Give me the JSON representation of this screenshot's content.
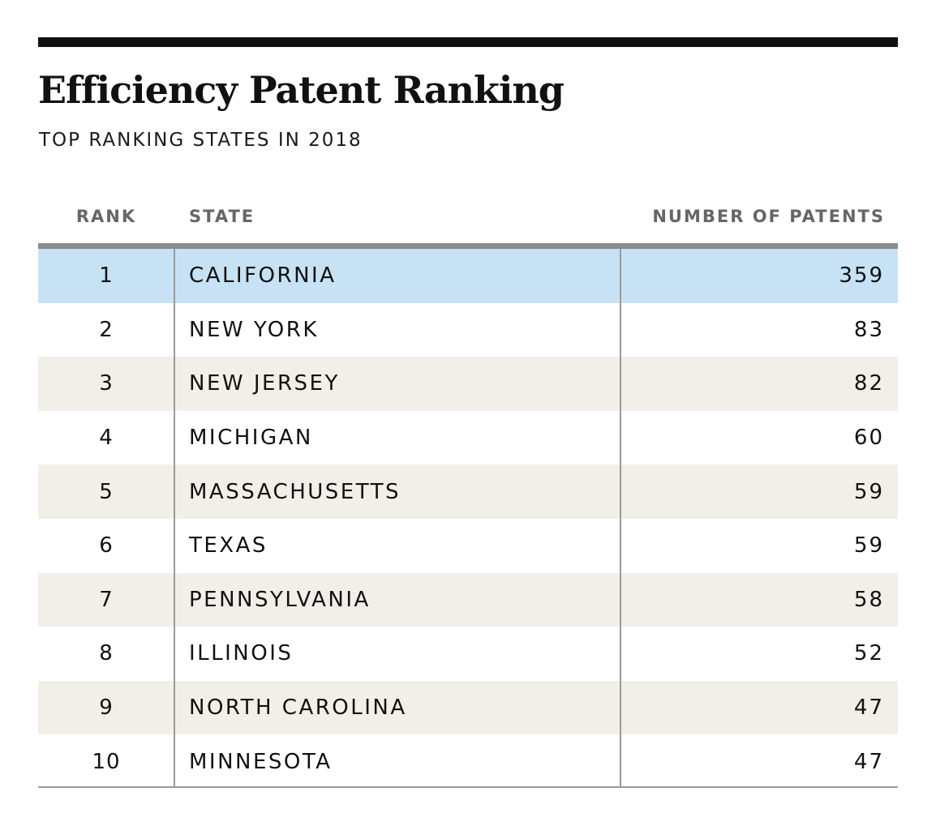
{
  "title": "Efficiency Patent Ranking",
  "subtitle": "TOP RANKING STATES IN 2018",
  "colors": {
    "highlight_row": "#c7e2f4",
    "shaded_row": "#f2efe9",
    "header_text": "#666666",
    "rule": "#111111"
  },
  "chart_data": {
    "type": "table",
    "title": "Efficiency Patent Ranking",
    "subtitle": "TOP RANKING STATES IN 2018",
    "columns": [
      "RANK",
      "STATE",
      "NUMBER OF PATENTS"
    ],
    "rows": [
      {
        "rank": "1",
        "state": "CALIFORNIA",
        "patents": "359"
      },
      {
        "rank": "2",
        "state": "NEW YORK",
        "patents": "83"
      },
      {
        "rank": "3",
        "state": "NEW JERSEY",
        "patents": "82"
      },
      {
        "rank": "4",
        "state": "MICHIGAN",
        "patents": "60"
      },
      {
        "rank": "5",
        "state": "MASSACHUSETTS",
        "patents": "59"
      },
      {
        "rank": "6",
        "state": "TEXAS",
        "patents": "59"
      },
      {
        "rank": "7",
        "state": "PENNSYLVANIA",
        "patents": "58"
      },
      {
        "rank": "8",
        "state": "ILLINOIS",
        "patents": "52"
      },
      {
        "rank": "9",
        "state": "NORTH CAROLINA",
        "patents": "47"
      },
      {
        "rank": "10",
        "state": "MINNESOTA",
        "patents": "47"
      }
    ],
    "highlighted_rank": "1"
  }
}
